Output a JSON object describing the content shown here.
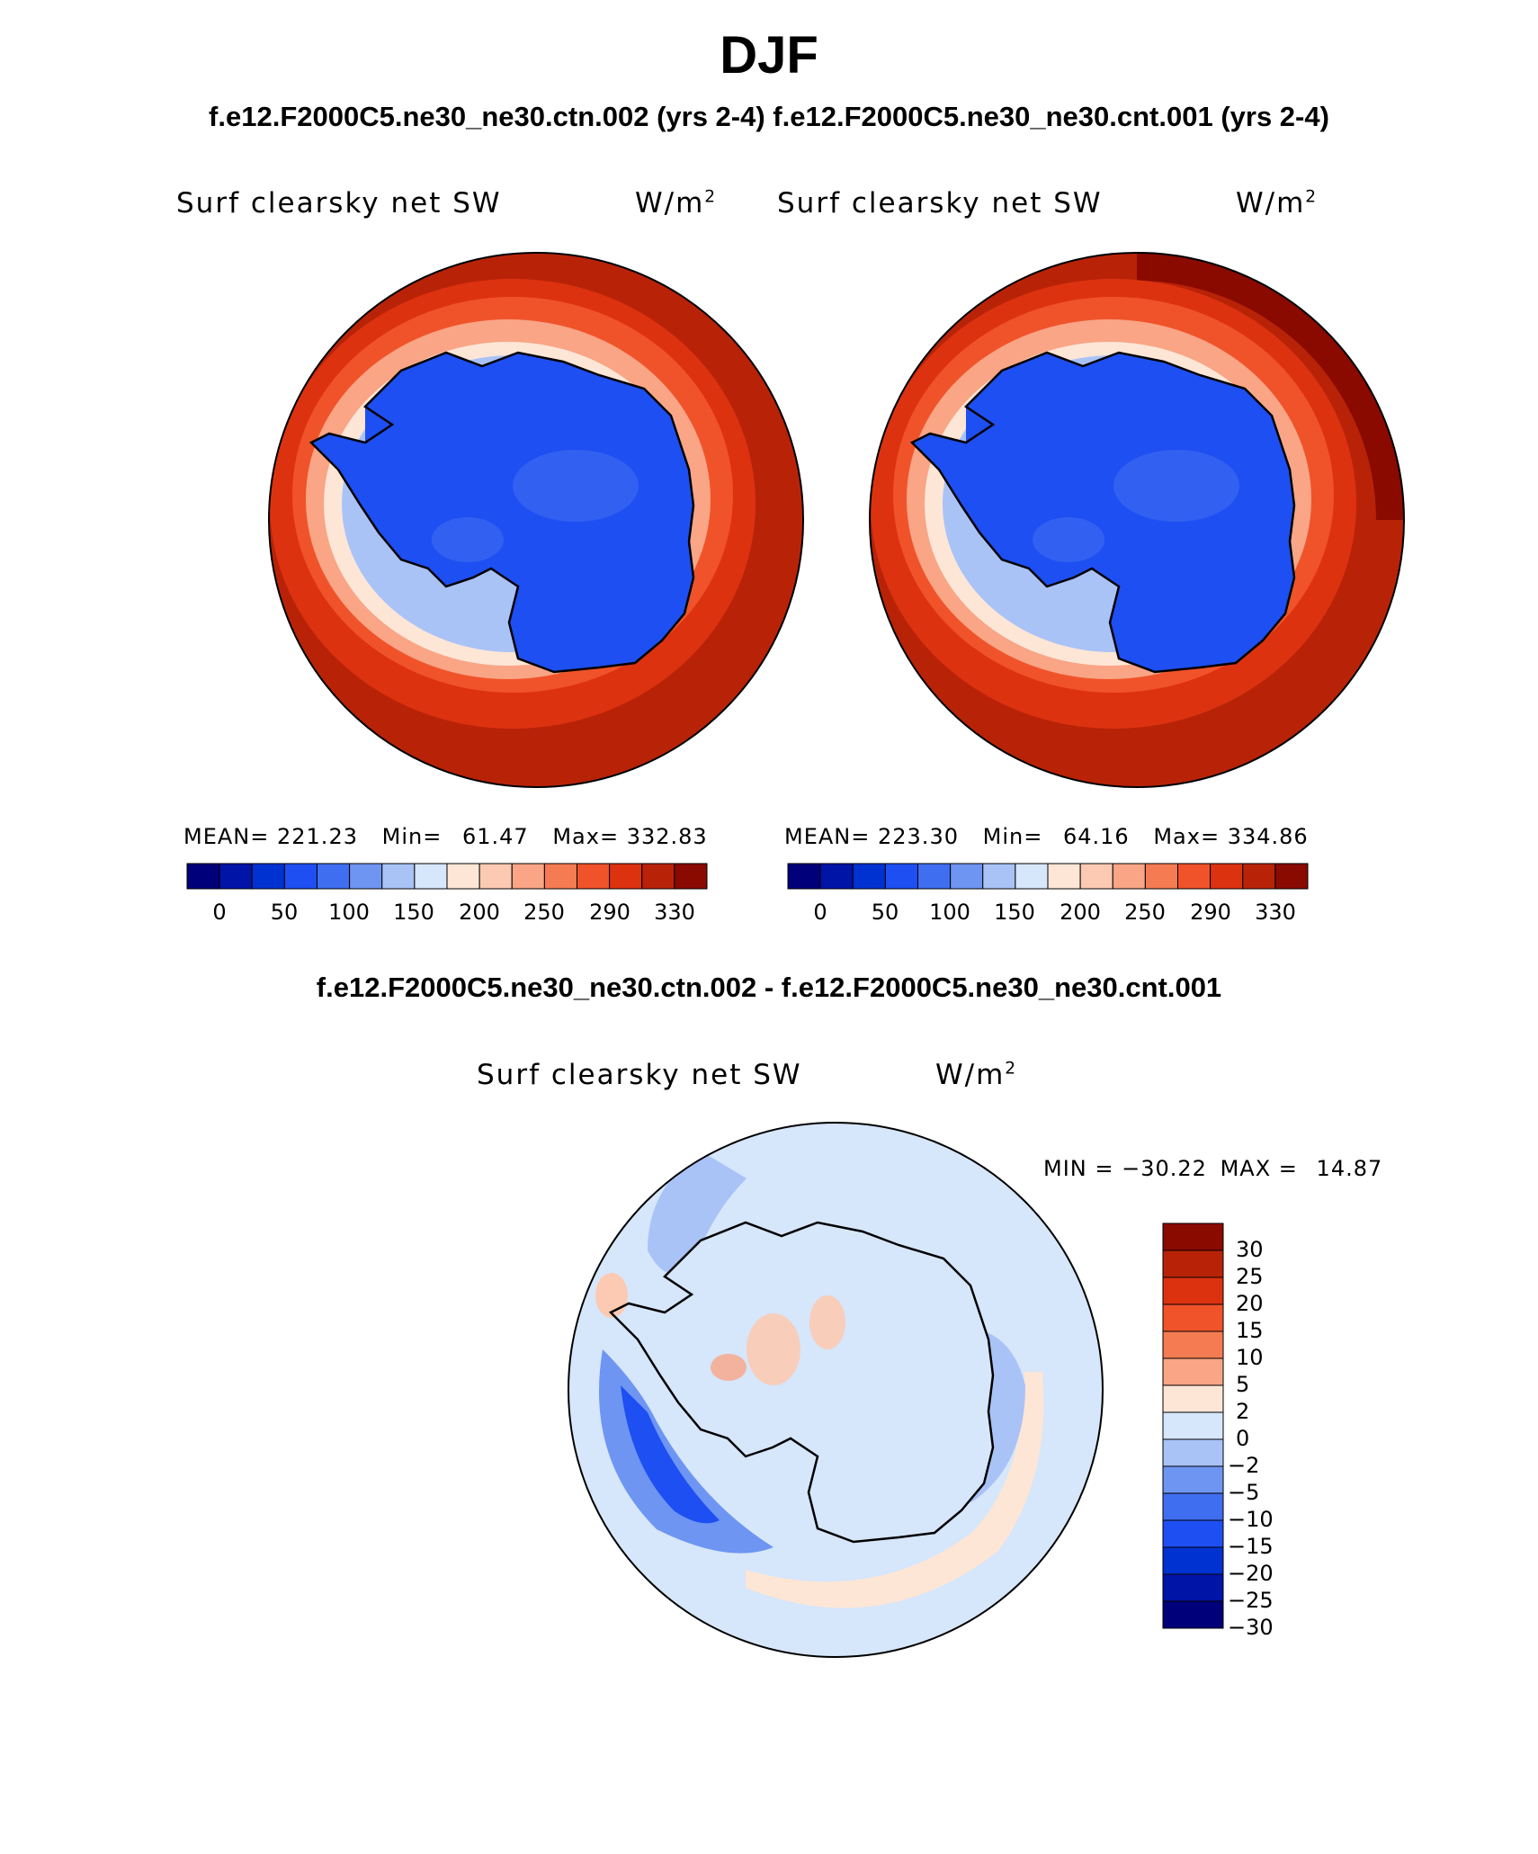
{
  "page": {
    "title": "DJF",
    "subtitle_top": "f.e12.F2000C5.ne30_ne30.ctn.002 (yrs 2-4) f.e12.F2000C5.ne30_ne30.cnt.001 (yrs 2-4)",
    "subtitle_diff": "f.e12.F2000C5.ne30_ne30.ctn.002 - f.e12.F2000C5.ne30_ne30.cnt.001"
  },
  "panels": [
    {
      "variable": "Surf clearsky net SW",
      "units_base": "W/m",
      "units_exp": "2",
      "mean_label": "MEAN=",
      "mean": "221.23",
      "min_label": "Min=",
      "min": "61.47",
      "max_label": "Max=",
      "max": "332.83"
    },
    {
      "variable": "Surf clearsky net SW",
      "units_base": "W/m",
      "units_exp": "2",
      "mean_label": "MEAN=",
      "mean": "223.30",
      "min_label": "Min=",
      "min": "64.16",
      "max_label": "Max=",
      "max": "334.86"
    }
  ],
  "colorbar": {
    "colors": [
      "#00007a",
      "#0014a8",
      "#0032d2",
      "#1e4ff2",
      "#3f6ef0",
      "#6e95f2",
      "#a9c3f7",
      "#d6e6fb",
      "#fde6d6",
      "#fccab2",
      "#f9a586",
      "#f57b52",
      "#f0532a",
      "#dd3210",
      "#b82308",
      "#8a0a00"
    ],
    "ticks": [
      "0",
      "50",
      "100",
      "150",
      "200",
      "250",
      "290",
      "330"
    ]
  },
  "diff_panel": {
    "variable": "Surf clearsky net SW",
    "units_base": "W/m",
    "units_exp": "2",
    "min_label": "MIN =",
    "min": "−30.22",
    "max_label": "MAX =",
    "max": "14.87",
    "colorbar_colors": [
      "#8a0a00",
      "#b82308",
      "#dd3210",
      "#f0532a",
      "#f57b52",
      "#f9a586",
      "#fde6d6",
      "#d6e6fb",
      "#a9c3f7",
      "#6e95f2",
      "#3f6ef0",
      "#1e4ff2",
      "#0032d2",
      "#0014a8",
      "#00007a"
    ],
    "colorbar_labels": [
      "30",
      "25",
      "20",
      "15",
      "10",
      "5",
      "2",
      "0",
      "−2",
      "−5",
      "−10",
      "−15",
      "−20",
      "−25",
      "−30"
    ]
  }
}
